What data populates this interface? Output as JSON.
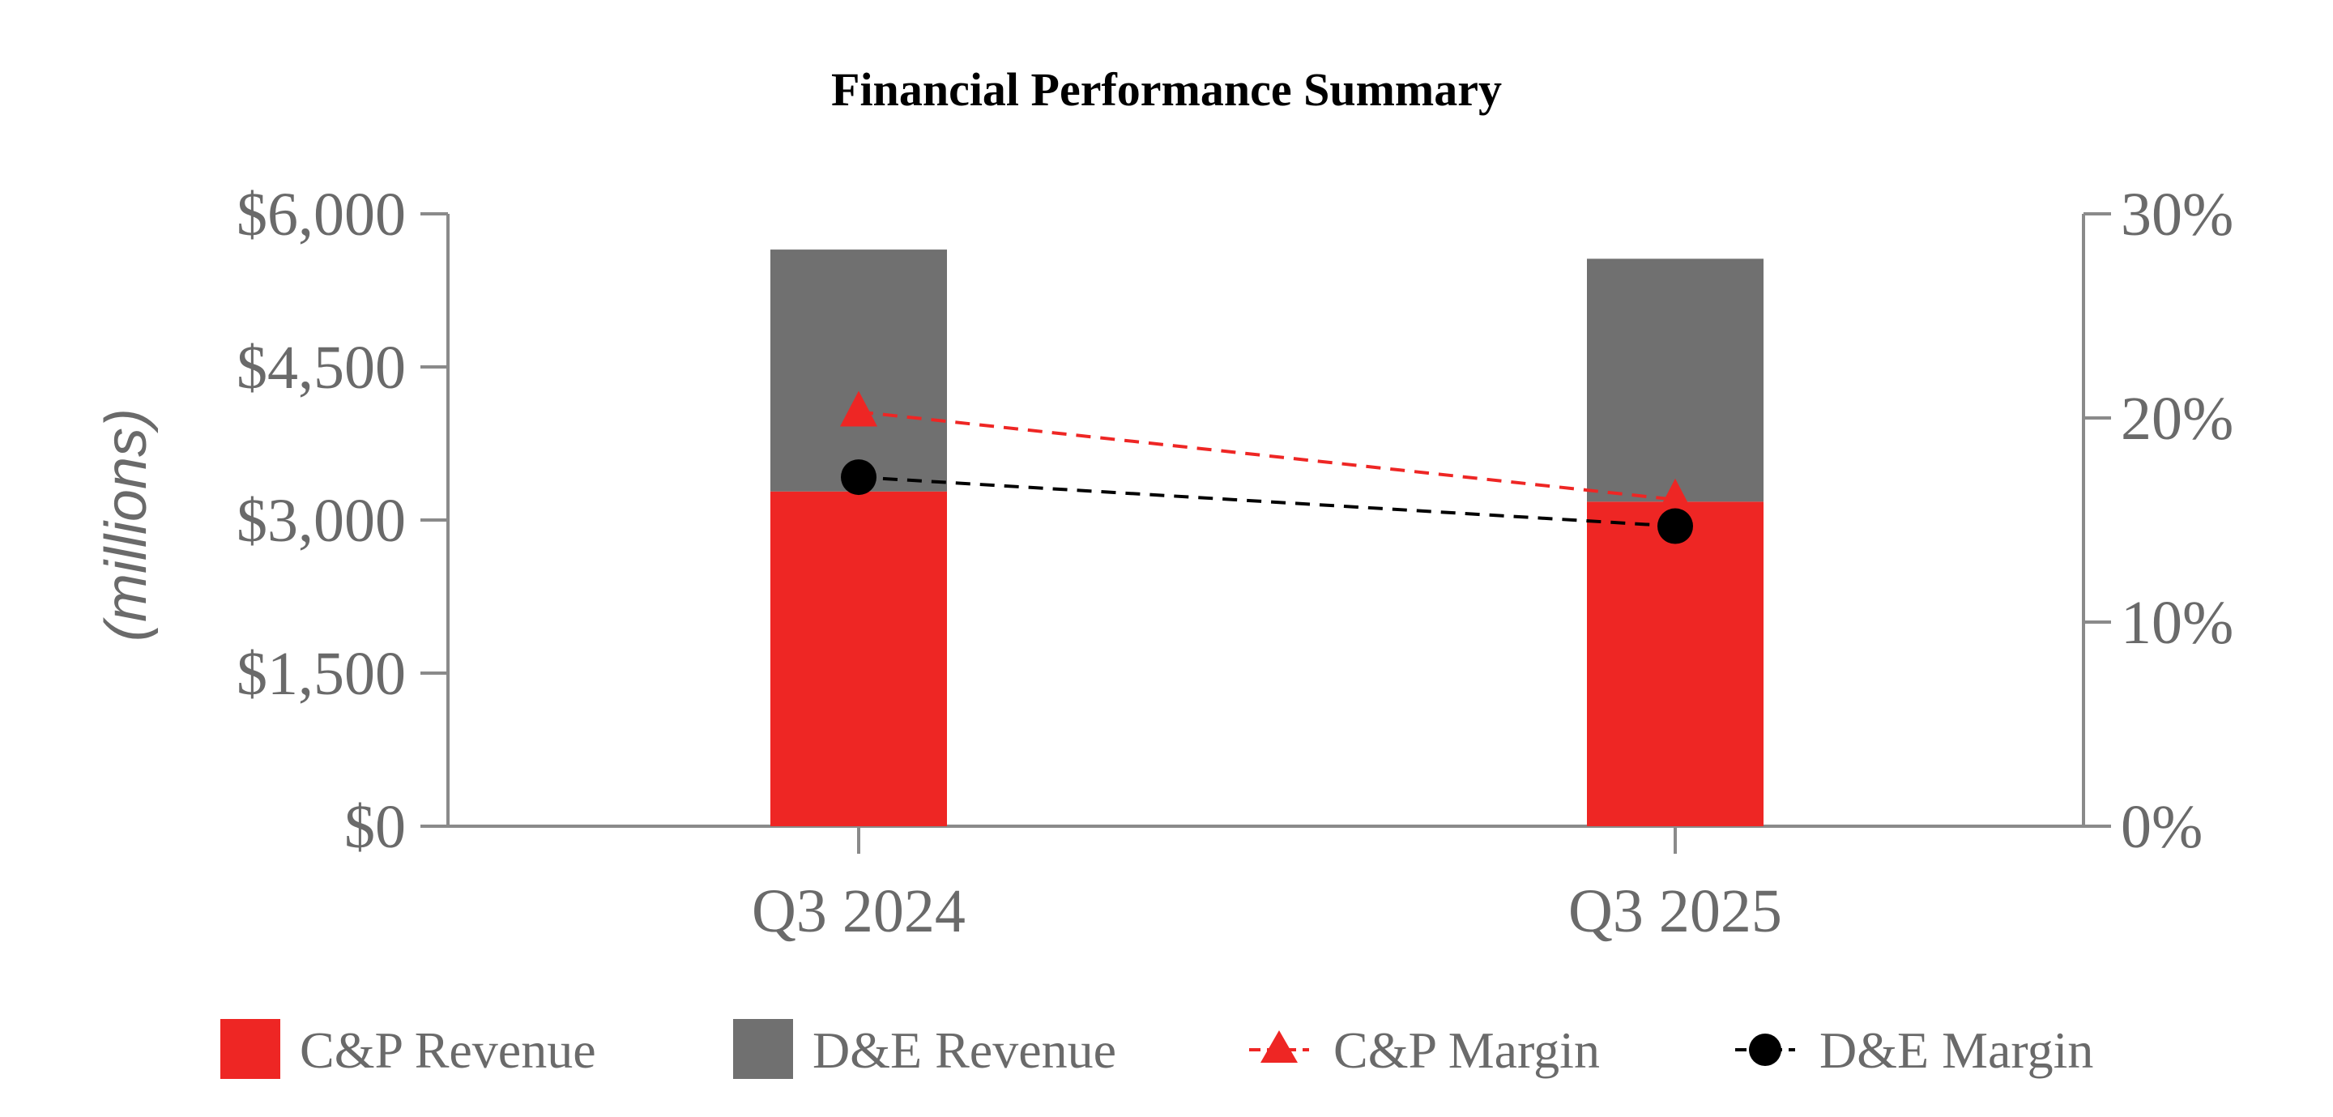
{
  "chart_data": {
    "type": "bar",
    "title": "Financial Performance Summary",
    "ylabel": "(millions)",
    "categories": [
      "Q3 2024",
      "Q3 2025"
    ],
    "stacked": true,
    "ylim": [
      0,
      6000
    ],
    "y_ticks": [
      "$0",
      "$1,500",
      "$3,000",
      "$4,500",
      "$6,000"
    ],
    "y_tick_values": [
      0,
      1500,
      3000,
      4500,
      6000
    ],
    "y2lim": [
      0,
      30
    ],
    "y2_ticks": [
      "0%",
      "10%",
      "20%",
      "30%"
    ],
    "y2_tick_values": [
      0,
      10,
      20,
      30
    ],
    "series": [
      {
        "name": "C&P Revenue",
        "kind": "bar",
        "axis": "left",
        "color": "#ee2624",
        "values": [
          3280,
          3180
        ]
      },
      {
        "name": "D&E Revenue",
        "kind": "bar",
        "axis": "left",
        "color": "#707070",
        "values": [
          2370,
          2380
        ]
      },
      {
        "name": "C&P Margin",
        "kind": "line",
        "axis": "right",
        "marker": "triangle",
        "dash": true,
        "color": "#ee2624",
        "values": [
          20.3,
          16.0
        ]
      },
      {
        "name": "D&E Margin",
        "kind": "line",
        "axis": "right",
        "marker": "circle",
        "dash": true,
        "color": "#000000",
        "values": [
          17.1,
          14.7
        ]
      }
    ],
    "grid": false,
    "legend_position": "bottom"
  }
}
